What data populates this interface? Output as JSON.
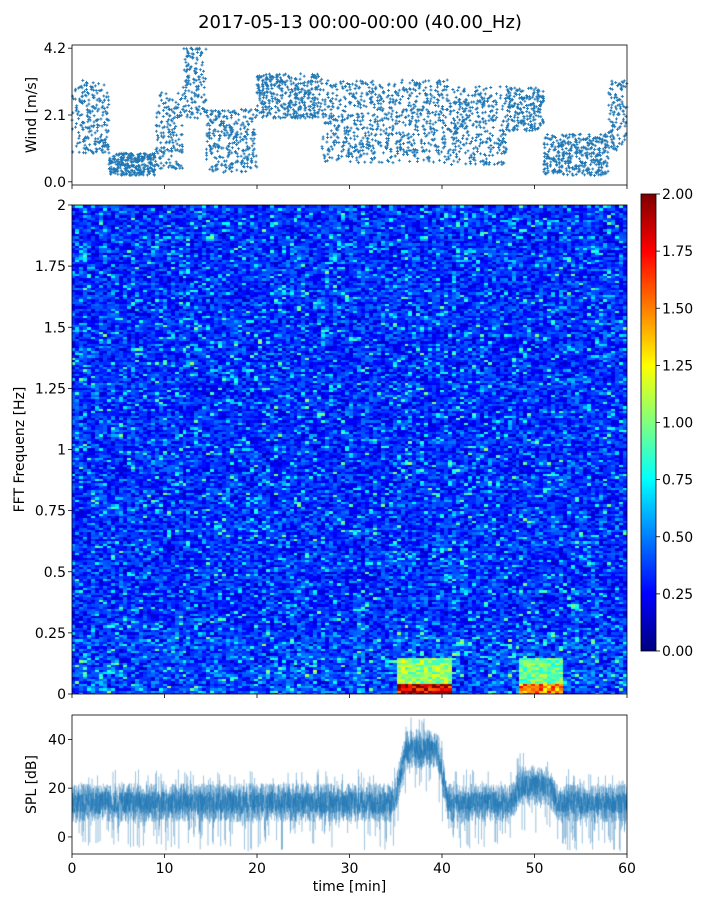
{
  "title": "2017-05-13 00:00-00:00 (40.00_Hz)",
  "xlabel": "time [min]",
  "chart_data": [
    {
      "type": "scatter",
      "name": "wind-panel",
      "ylabel": "Wind [m/s]",
      "xlim": [
        0,
        60
      ],
      "ylim": [
        -0.1,
        4.3
      ],
      "yticks": [
        0.0,
        2.1,
        4.2
      ],
      "ytick_labels": [
        "0.0",
        "2.1",
        "4.2"
      ],
      "color": "#1f77b4",
      "segments": [
        {
          "x": [
            0,
            4
          ],
          "y_range": [
            0.9,
            3.2
          ]
        },
        {
          "x": [
            4,
            9
          ],
          "y_range": [
            0.2,
            0.9
          ]
        },
        {
          "x": [
            9,
            12
          ],
          "y_range": [
            0.4,
            2.8
          ]
        },
        {
          "x": [
            12,
            14.5
          ],
          "y_range": [
            2.0,
            4.2
          ]
        },
        {
          "x": [
            14.5,
            20
          ],
          "y_range": [
            0.3,
            2.3
          ]
        },
        {
          "x": [
            20,
            27
          ],
          "y_range": [
            2.0,
            3.4
          ]
        },
        {
          "x": [
            27,
            35
          ],
          "y_range": [
            0.6,
            3.2
          ]
        },
        {
          "x": [
            35,
            41
          ],
          "y_range": [
            0.6,
            3.2
          ]
        },
        {
          "x": [
            41,
            47
          ],
          "y_range": [
            0.5,
            3.0
          ]
        },
        {
          "x": [
            47,
            51
          ],
          "y_range": [
            1.6,
            3.0
          ]
        },
        {
          "x": [
            51,
            58
          ],
          "y_range": [
            0.2,
            1.5
          ]
        },
        {
          "x": [
            58,
            60
          ],
          "y_range": [
            1.0,
            3.2
          ]
        }
      ]
    },
    {
      "type": "heatmap",
      "name": "spectrogram",
      "ylabel": "FFT Frequenz [Hz]",
      "xlim": [
        0,
        60
      ],
      "ylim": [
        0,
        2
      ],
      "yticks": [
        0,
        0.25,
        0.5,
        0.75,
        1,
        1.25,
        1.5,
        1.75,
        2
      ],
      "ytick_labels": [
        "0",
        "0.25",
        "0.5",
        "0.75",
        "1",
        "1.25",
        "1.5",
        "1.75",
        "2"
      ],
      "colormap": "jet",
      "colorbar": {
        "range": [
          0,
          2
        ],
        "ticks": [
          0.0,
          0.25,
          0.5,
          0.75,
          1.0,
          1.25,
          1.5,
          1.75,
          2.0
        ],
        "tick_labels": [
          "0.00",
          "0.25",
          "0.50",
          "0.75",
          "1.00",
          "1.25",
          "1.50",
          "1.75",
          "2.00"
        ]
      },
      "background_level": 0.3,
      "hotspots": [
        {
          "x": [
            35,
            41
          ],
          "y": [
            0,
            0.05
          ],
          "value": 2.0
        },
        {
          "x": [
            35,
            41
          ],
          "y": [
            0.05,
            0.15
          ],
          "value": 1.1
        },
        {
          "x": [
            48.5,
            53
          ],
          "y": [
            0,
            0.05
          ],
          "value": 1.6
        },
        {
          "x": [
            48.5,
            53
          ],
          "y": [
            0.05,
            0.15
          ],
          "value": 1.0
        }
      ]
    },
    {
      "type": "line",
      "name": "spl-panel",
      "ylabel": "SPL [dB]",
      "xlim": [
        0,
        60
      ],
      "ylim": [
        -7,
        50
      ],
      "yticks": [
        0,
        20,
        40
      ],
      "ytick_labels": [
        "0",
        "20",
        "40"
      ],
      "xticks": [
        0,
        10,
        20,
        30,
        40,
        50,
        60
      ],
      "xtick_labels": [
        "0",
        "10",
        "20",
        "30",
        "40",
        "50",
        "60"
      ],
      "color": "#1f77b4",
      "baseline_mean": 14,
      "features": [
        {
          "x": [
            35.5,
            40
          ],
          "peak": 42
        },
        {
          "x": [
            48,
            52
          ],
          "peak": 27
        }
      ]
    }
  ]
}
